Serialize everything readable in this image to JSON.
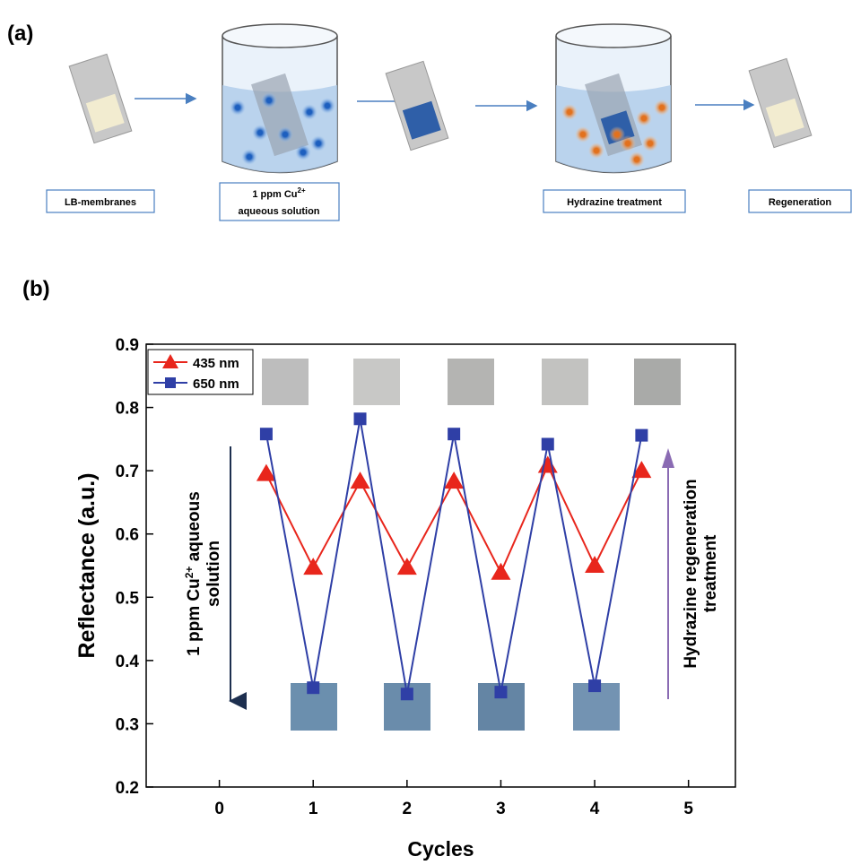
{
  "panel_a": {
    "label": "(a)",
    "steps": [
      "LB-membranes",
      {
        "text": "1 ppm Cu",
        "sup": "2+",
        "line2": "aqueous solution"
      },
      "Hydrazine treatment",
      "Regeneration"
    ]
  },
  "panel_b_label": "(b)",
  "chart_data": {
    "type": "line",
    "x_label": "Cycles",
    "y_label": "Reflectance (a.u.)",
    "x": [
      0.5,
      1,
      1.5,
      2,
      2.5,
      3,
      3.5,
      4,
      4.5
    ],
    "series": [
      {
        "name": "435 nm",
        "color": "#e8261c",
        "marker": "triangle",
        "values": [
          0.695,
          0.547,
          0.683,
          0.547,
          0.683,
          0.539,
          0.708,
          0.55,
          0.7
        ]
      },
      {
        "name": "650 nm",
        "color": "#2f3fa6",
        "marker": "square",
        "values": [
          0.758,
          0.357,
          0.782,
          0.347,
          0.758,
          0.35,
          0.742,
          0.36,
          0.756
        ]
      }
    ],
    "xlim": [
      -0.78,
      5.5
    ],
    "xticks": [
      0,
      1,
      2,
      3,
      4,
      5
    ],
    "ylim": [
      0.2,
      0.9
    ],
    "yticks": [
      0.2,
      0.3,
      0.4,
      0.5,
      0.6,
      0.7,
      0.8,
      0.9
    ],
    "legend": "upper left",
    "annotations": {
      "left": {
        "text": "1 ppm Cu",
        "sup": "2+",
        "rest": " aqueous",
        "line2": "solution"
      },
      "right": [
        "Hydrazine regeneration",
        "treatment"
      ]
    }
  }
}
